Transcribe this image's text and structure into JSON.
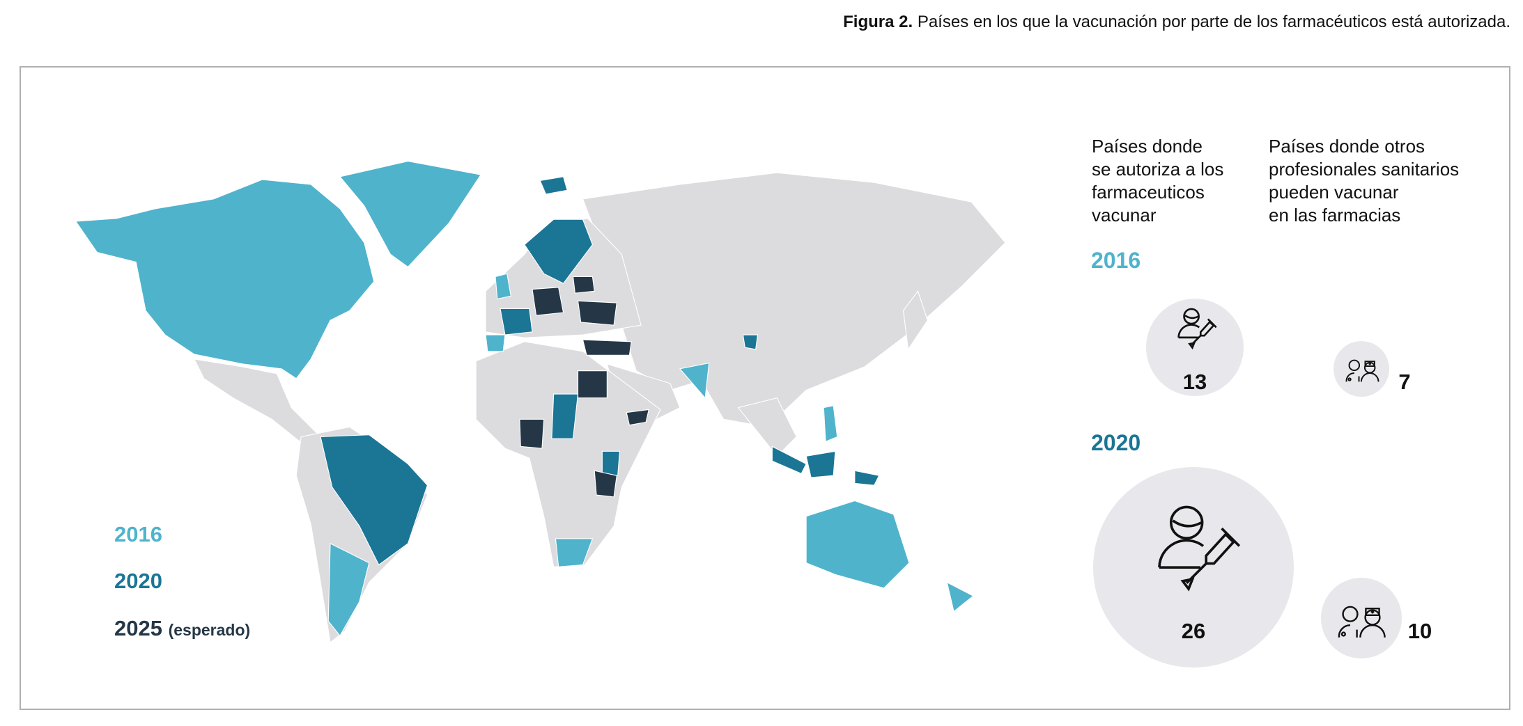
{
  "figure": {
    "label": "Figura 2.",
    "caption": "Países en los que la vacunación por parte de los farmacéuticos está autorizada."
  },
  "legend": {
    "items": [
      {
        "year": "2016",
        "note": "",
        "color": "#4fb3cc"
      },
      {
        "year": "2020",
        "note": "",
        "color": "#1b7595"
      },
      {
        "year": "2025",
        "note": "(esperado)",
        "color": "#253746"
      }
    ]
  },
  "map_colors": {
    "land": "#dcdcdf",
    "2016": "#4fb3cc",
    "2020": "#1b7595",
    "2025": "#253746"
  },
  "panel": {
    "col1_header": "Países donde\nse autoriza a los\nfarmaceuticos\nvacunar",
    "col2_header": "Países donde otros\nprofesionales sanitarios\npueden vacunar\nen las farmacias",
    "rows": [
      {
        "year": "2016",
        "year_color": "#4fb3cc",
        "pharmacists": "13",
        "other_professionals": "7",
        "pharmacist_icon": "pharmacist-vaccine-icon",
        "professionals_icon": "health-professionals-icon"
      },
      {
        "year": "2020",
        "year_color": "#1b7595",
        "pharmacists": "26",
        "other_professionals": "10",
        "pharmacist_icon": "pharmacist-vaccine-icon",
        "professionals_icon": "health-professionals-icon"
      }
    ]
  }
}
